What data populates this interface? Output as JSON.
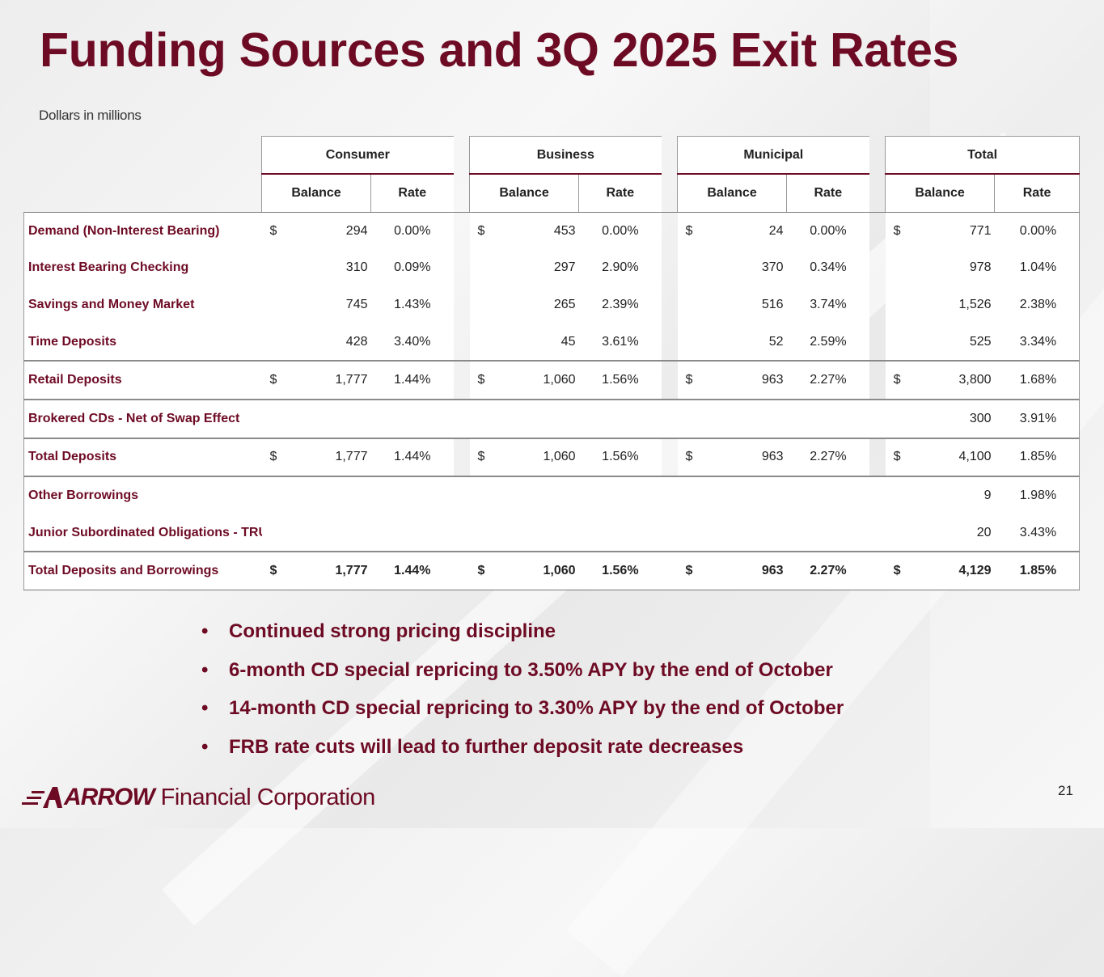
{
  "title": "Funding Sources and 3Q 2025 Exit Rates",
  "subtitle": "Dollars in millions",
  "groups": [
    "Consumer",
    "Business",
    "Municipal",
    "Total"
  ],
  "sub_headers": {
    "balance": "Balance",
    "rate": "Rate"
  },
  "rows": [
    {
      "label": "Demand (Non-Interest Bearing)",
      "consumer": {
        "dollar": "$",
        "balance": "294",
        "rate": "0.00%"
      },
      "business": {
        "dollar": "$",
        "balance": "453",
        "rate": "0.00%"
      },
      "municipal": {
        "dollar": "$",
        "balance": "24",
        "rate": "0.00%"
      },
      "total": {
        "dollar": "$",
        "balance": "771",
        "rate": "0.00%"
      }
    },
    {
      "label": "Interest Bearing Checking",
      "consumer": {
        "dollar": "",
        "balance": "310",
        "rate": "0.09%"
      },
      "business": {
        "dollar": "",
        "balance": "297",
        "rate": "2.90%"
      },
      "municipal": {
        "dollar": "",
        "balance": "370",
        "rate": "0.34%"
      },
      "total": {
        "dollar": "",
        "balance": "978",
        "rate": "1.04%"
      }
    },
    {
      "label": "Savings and Money Market",
      "consumer": {
        "dollar": "",
        "balance": "745",
        "rate": "1.43%"
      },
      "business": {
        "dollar": "",
        "balance": "265",
        "rate": "2.39%"
      },
      "municipal": {
        "dollar": "",
        "balance": "516",
        "rate": "3.74%"
      },
      "total": {
        "dollar": "",
        "balance": "1,526",
        "rate": "2.38%"
      }
    },
    {
      "label": "Time Deposits",
      "consumer": {
        "dollar": "",
        "balance": "428",
        "rate": "3.40%"
      },
      "business": {
        "dollar": "",
        "balance": "45",
        "rate": "3.61%"
      },
      "municipal": {
        "dollar": "",
        "balance": "52",
        "rate": "2.59%"
      },
      "total": {
        "dollar": "",
        "balance": "525",
        "rate": "3.34%"
      }
    },
    {
      "label": "Retail Deposits",
      "consumer": {
        "dollar": "$",
        "balance": "1,777",
        "rate": "1.44%"
      },
      "business": {
        "dollar": "$",
        "balance": "1,060",
        "rate": "1.56%"
      },
      "municipal": {
        "dollar": "$",
        "balance": "963",
        "rate": "2.27%"
      },
      "total": {
        "dollar": "$",
        "balance": "3,800",
        "rate": "1.68%"
      }
    },
    {
      "label": "Brokered CDs - Net of Swap Effect",
      "consumer": {
        "dollar": "",
        "balance": "",
        "rate": ""
      },
      "business": {
        "dollar": "",
        "balance": "",
        "rate": ""
      },
      "municipal": {
        "dollar": "",
        "balance": "",
        "rate": ""
      },
      "total": {
        "dollar": "",
        "balance": "300",
        "rate": "3.91%"
      }
    },
    {
      "label": "Total Deposits",
      "consumer": {
        "dollar": "$",
        "balance": "1,777",
        "rate": "1.44%"
      },
      "business": {
        "dollar": "$",
        "balance": "1,060",
        "rate": "1.56%"
      },
      "municipal": {
        "dollar": "$",
        "balance": "963",
        "rate": "2.27%"
      },
      "total": {
        "dollar": "$",
        "balance": "4,100",
        "rate": "1.85%"
      }
    },
    {
      "label": "Other Borrowings",
      "consumer": {
        "dollar": "",
        "balance": "",
        "rate": ""
      },
      "business": {
        "dollar": "",
        "balance": "",
        "rate": ""
      },
      "municipal": {
        "dollar": "",
        "balance": "",
        "rate": ""
      },
      "total": {
        "dollar": "",
        "balance": "9",
        "rate": "1.98%"
      }
    },
    {
      "label": "Junior Subordinated Obligations - TRUPS",
      "consumer": {
        "dollar": "",
        "balance": "",
        "rate": ""
      },
      "business": {
        "dollar": "",
        "balance": "",
        "rate": ""
      },
      "municipal": {
        "dollar": "",
        "balance": "",
        "rate": ""
      },
      "total": {
        "dollar": "",
        "balance": "20",
        "rate": "3.43%"
      }
    },
    {
      "label": "Total Deposits and Borrowings",
      "consumer": {
        "dollar": "$",
        "balance": "1,777",
        "rate": "1.44%"
      },
      "business": {
        "dollar": "$",
        "balance": "1,060",
        "rate": "1.56%"
      },
      "municipal": {
        "dollar": "$",
        "balance": "963",
        "rate": "2.27%"
      },
      "total": {
        "dollar": "$",
        "balance": "4,129",
        "rate": "1.85%"
      }
    }
  ],
  "bullets": [
    "Continued strong pricing discipline",
    "6-month CD special repricing to 3.50% APY by the end of October",
    "14-month CD special repricing to 3.30% APY by the end of October",
    "FRB rate cuts will lead to further deposit rate decreases"
  ],
  "bullet_glyph": "•",
  "logo": {
    "word": "ARROW",
    "rest": "Financial Corporation"
  },
  "page_number": "21",
  "colors": {
    "brand": "#6e0b24"
  }
}
